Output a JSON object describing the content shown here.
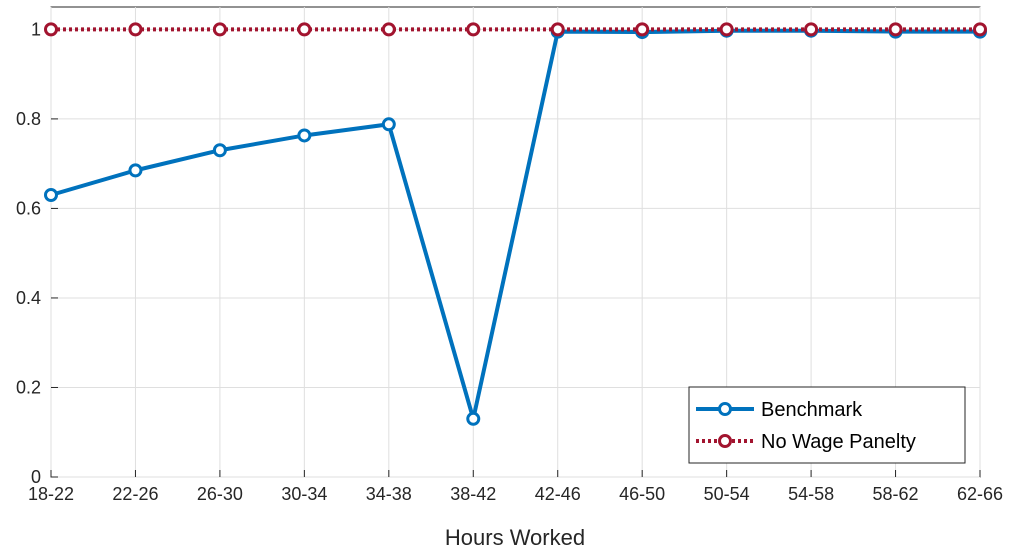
{
  "chart_data": {
    "type": "line",
    "title": "",
    "xlabel": "Hours Worked",
    "ylabel": "",
    "categories": [
      "18-22",
      "22-26",
      "26-30",
      "30-34",
      "34-38",
      "38-42",
      "42-46",
      "46-50",
      "50-54",
      "54-58",
      "58-62",
      "62-66"
    ],
    "ylim": [
      0,
      1.05
    ],
    "yticks": [
      "0",
      "0.2",
      "0.4",
      "0.6",
      "0.8",
      "1"
    ],
    "grid": true,
    "legend_position": "bottom-right",
    "series": [
      {
        "name": "Benchmark",
        "color": "#0072BD",
        "style": "solid",
        "marker": "circle",
        "values": [
          0.63,
          0.685,
          0.73,
          0.763,
          0.788,
          0.13,
          0.995,
          0.994,
          0.997,
          0.997,
          0.995,
          0.995
        ]
      },
      {
        "name": "No Wage Panelty",
        "color": "#A2142F",
        "style": "dotted",
        "marker": "circle",
        "values": [
          1,
          1,
          1,
          1,
          1,
          1,
          1,
          1,
          1,
          1,
          1,
          1
        ]
      }
    ]
  }
}
